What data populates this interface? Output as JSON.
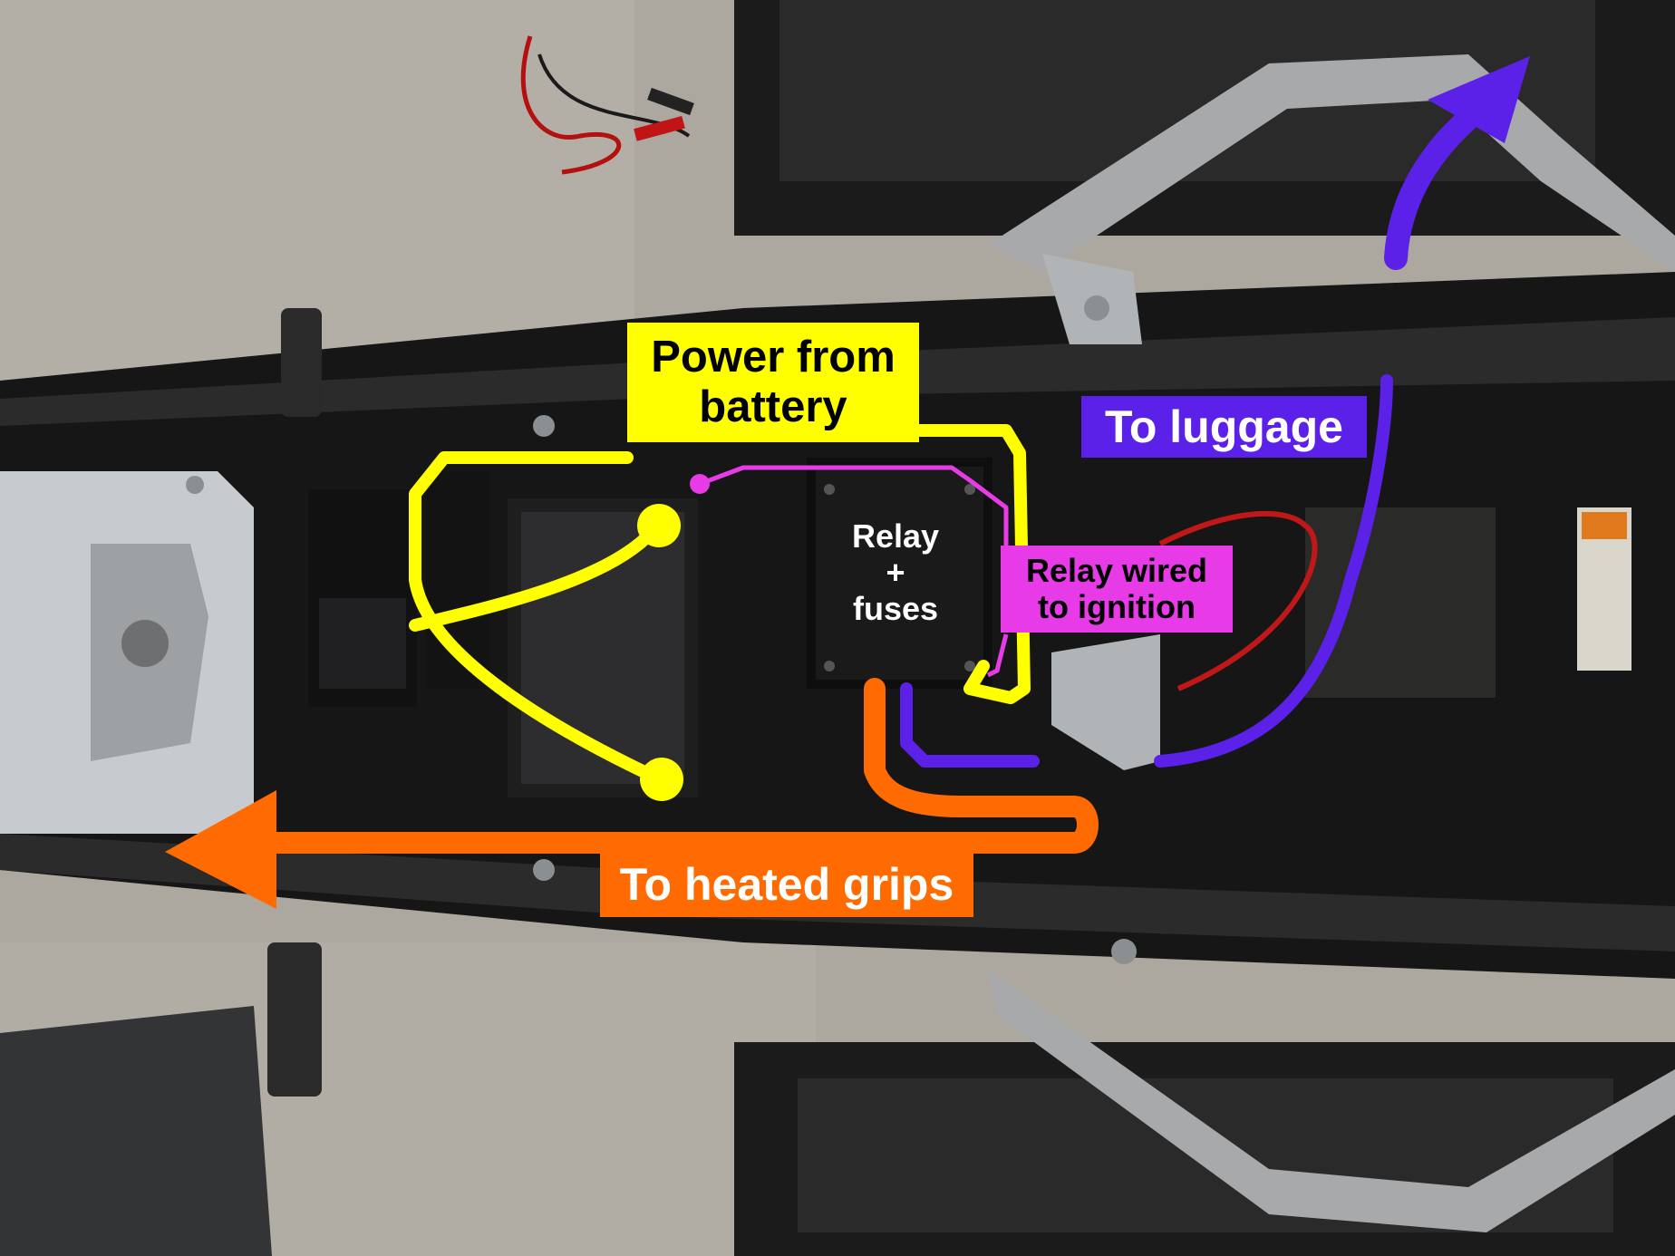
{
  "annotations": {
    "power_from_battery": "Power from\nbattery",
    "to_luggage": "To luggage",
    "relay_wired_to_ignition": "Relay wired\nto ignition",
    "relay_fuses": "Relay\n+\nfuses",
    "to_heated_grips": "To heated grips"
  },
  "colors": {
    "power_wire": "#ffff00",
    "luggage_wire": "#5b21e8",
    "ignition_wire": "#e63be6",
    "heated_grips_wire": "#ff6b00",
    "relay_box_text": "#ffffff"
  }
}
